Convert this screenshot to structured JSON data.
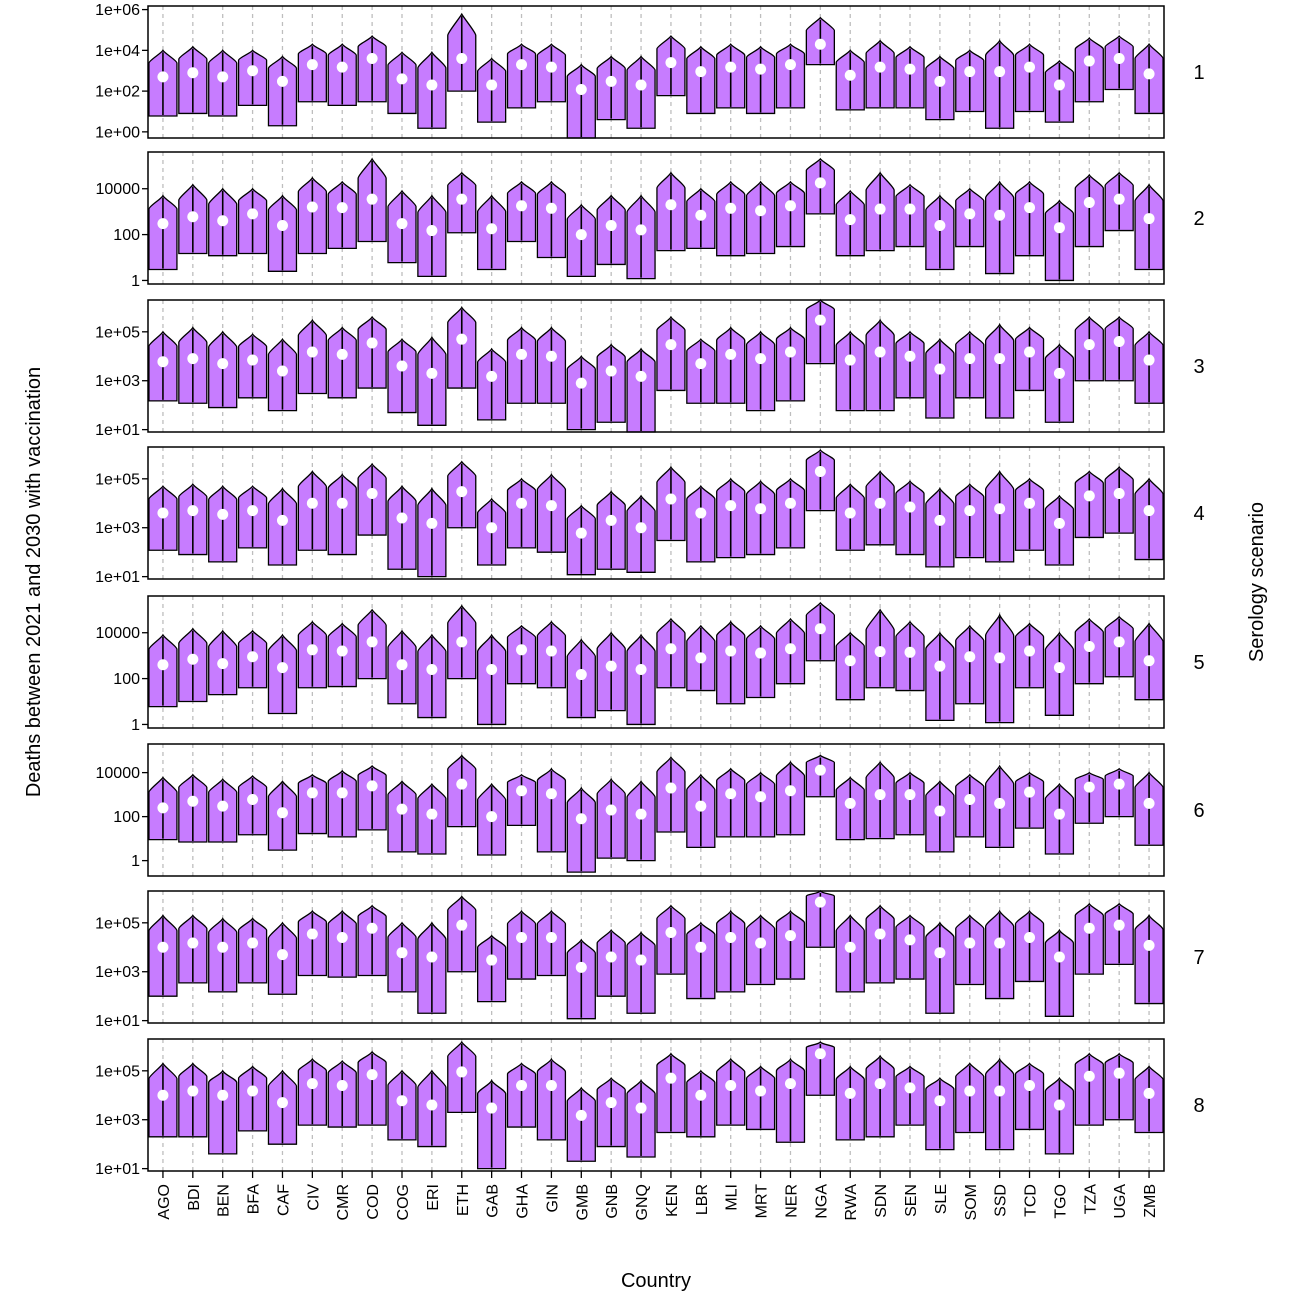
{
  "chart_data": {
    "type": "violin",
    "xlabel": "Country",
    "ylabel": "Deaths between 2021 and 2030 with vaccination",
    "facet_label": "Serology scenario",
    "y_scale": "log10",
    "grid": "vertical dashed at categories",
    "colors": {
      "violin_fill": "#C77CFF",
      "median_point": "#FFFFFF",
      "outline": "#000000",
      "grid": "#BEBEBE"
    },
    "categories": [
      "AGO",
      "BDI",
      "BEN",
      "BFA",
      "CAF",
      "CIV",
      "CMR",
      "COD",
      "COG",
      "ERI",
      "ETH",
      "GAB",
      "GHA",
      "GIN",
      "GMB",
      "GNB",
      "GNQ",
      "KEN",
      "LBR",
      "MLI",
      "MRT",
      "NER",
      "NGA",
      "RWA",
      "SDN",
      "SEN",
      "SLE",
      "SOM",
      "SSD",
      "TCD",
      "TGO",
      "TZA",
      "UGA",
      "ZMB"
    ],
    "panels": [
      {
        "scenario": "1",
        "ylim": [
          0.5,
          1500000
        ],
        "y_ticks": [
          1,
          100,
          10000,
          1000000
        ],
        "y_tick_labels": [
          "1e+00",
          "1e+02",
          "1e+04",
          "1e+06"
        ],
        "median": [
          500,
          800,
          500,
          1000,
          300,
          2000,
          1500,
          4000,
          400,
          200,
          4000,
          200,
          2000,
          1500,
          120,
          300,
          200,
          2500,
          900,
          1500,
          1200,
          2000,
          20000,
          600,
          1500,
          1200,
          300,
          900,
          900,
          1500,
          200,
          3000,
          4000,
          700
        ],
        "low": [
          6,
          8,
          6,
          20,
          2,
          30,
          20,
          30,
          8,
          1.5,
          100,
          3,
          15,
          30,
          0.5,
          4,
          1.5,
          60,
          8,
          15,
          8,
          15,
          2000,
          12,
          15,
          15,
          4,
          10,
          1.5,
          10,
          3,
          30,
          120,
          8
        ],
        "high": [
          10000,
          15000,
          10000,
          10000,
          5000,
          20000,
          20000,
          50000,
          8000,
          8000,
          600000,
          4000,
          20000,
          20000,
          2000,
          5000,
          5000,
          50000,
          15000,
          20000,
          15000,
          20000,
          400000,
          10000,
          30000,
          15000,
          5000,
          10000,
          30000,
          20000,
          3000,
          40000,
          50000,
          20000
        ]
      },
      {
        "scenario": "2",
        "ylim": [
          0.7,
          400000
        ],
        "y_ticks": [
          1,
          100,
          10000
        ],
        "y_tick_labels": [
          "1",
          "100",
          "10000"
        ],
        "median": [
          300,
          600,
          400,
          800,
          250,
          1600,
          1500,
          3500,
          300,
          150,
          3500,
          180,
          1800,
          1400,
          100,
          250,
          160,
          2000,
          700,
          1400,
          1100,
          1800,
          18000,
          450,
          1300,
          1300,
          250,
          800,
          700,
          1500,
          200,
          2500,
          3500,
          500
        ],
        "low": [
          3,
          15,
          12,
          15,
          2.5,
          15,
          25,
          50,
          6,
          1.5,
          120,
          3,
          50,
          10,
          1.5,
          5,
          1.2,
          20,
          25,
          12,
          15,
          30,
          800,
          12,
          20,
          30,
          3,
          30,
          2,
          12,
          1,
          30,
          150,
          3
        ],
        "high": [
          5000,
          15000,
          10000,
          10000,
          5000,
          30000,
          20000,
          200000,
          8000,
          5000,
          50000,
          5000,
          20000,
          20000,
          2000,
          5000,
          5000,
          50000,
          10000,
          20000,
          20000,
          20000,
          200000,
          8000,
          50000,
          15000,
          5000,
          10000,
          20000,
          20000,
          3000,
          40000,
          50000,
          15000
        ]
      },
      {
        "scenario": "3",
        "ylim": [
          8,
          2000000
        ],
        "y_ticks": [
          10,
          1000,
          100000
        ],
        "y_tick_labels": [
          "1e+01",
          "1e+03",
          "1e+05"
        ],
        "median": [
          6000,
          8000,
          5000,
          7000,
          2500,
          15000,
          12000,
          35000,
          4000,
          2000,
          50000,
          1500,
          12000,
          10000,
          800,
          2500,
          1500,
          30000,
          5000,
          12000,
          8000,
          15000,
          300000,
          7000,
          15000,
          10000,
          3000,
          8000,
          8000,
          15000,
          2000,
          30000,
          40000,
          7000
        ],
        "low": [
          150,
          120,
          80,
          200,
          60,
          300,
          200,
          500,
          50,
          15,
          500,
          25,
          120,
          120,
          10,
          20,
          8,
          400,
          120,
          120,
          60,
          150,
          5000,
          60,
          60,
          200,
          30,
          200,
          30,
          400,
          20,
          1000,
          1000,
          120
        ],
        "high": [
          100000,
          150000,
          100000,
          80000,
          50000,
          300000,
          150000,
          400000,
          50000,
          60000,
          1000000,
          20000,
          150000,
          150000,
          10000,
          30000,
          20000,
          400000,
          50000,
          150000,
          100000,
          150000,
          2000000,
          100000,
          300000,
          100000,
          50000,
          100000,
          200000,
          150000,
          30000,
          400000,
          400000,
          100000
        ]
      },
      {
        "scenario": "4",
        "ylim": [
          8,
          2000000
        ],
        "y_ticks": [
          10,
          1000,
          100000
        ],
        "y_tick_labels": [
          "1e+01",
          "1e+03",
          "1e+05"
        ],
        "median": [
          4000,
          5000,
          3500,
          5000,
          2000,
          10000,
          10000,
          25000,
          2500,
          1500,
          30000,
          1000,
          10000,
          8000,
          600,
          2000,
          1000,
          15000,
          4000,
          8000,
          6000,
          10000,
          200000,
          4000,
          10000,
          7000,
          2000,
          5000,
          6000,
          10000,
          1500,
          20000,
          25000,
          5000
        ],
        "low": [
          120,
          80,
          40,
          150,
          30,
          120,
          80,
          500,
          20,
          10,
          1000,
          30,
          150,
          100,
          12,
          20,
          15,
          300,
          40,
          60,
          80,
          150,
          5000,
          120,
          200,
          80,
          25,
          60,
          40,
          120,
          30,
          400,
          600,
          50
        ],
        "high": [
          50000,
          60000,
          50000,
          50000,
          40000,
          200000,
          150000,
          400000,
          50000,
          40000,
          500000,
          15000,
          100000,
          150000,
          8000,
          30000,
          20000,
          300000,
          50000,
          100000,
          80000,
          100000,
          1500000,
          60000,
          200000,
          80000,
          40000,
          60000,
          200000,
          100000,
          20000,
          200000,
          300000,
          100000
        ]
      },
      {
        "scenario": "5",
        "ylim": [
          0.7,
          400000
        ],
        "y_ticks": [
          1,
          100,
          10000
        ],
        "y_tick_labels": [
          "1",
          "100",
          "10000"
        ],
        "median": [
          400,
          700,
          450,
          900,
          300,
          1800,
          1600,
          4000,
          400,
          250,
          4000,
          250,
          1800,
          1600,
          150,
          350,
          250,
          2000,
          800,
          1600,
          1300,
          2000,
          15000,
          600,
          1500,
          1400,
          350,
          900,
          800,
          1600,
          300,
          2500,
          4000,
          600
        ],
        "low": [
          6,
          10,
          20,
          40,
          3,
          40,
          45,
          100,
          8,
          2,
          100,
          1,
          60,
          40,
          2,
          4,
          1,
          40,
          30,
          8,
          15,
          60,
          600,
          12,
          40,
          30,
          1.5,
          8,
          1.2,
          40,
          2.5,
          60,
          120,
          12
        ],
        "high": [
          8000,
          15000,
          12000,
          12000,
          8000,
          30000,
          25000,
          100000,
          12000,
          8000,
          150000,
          8000,
          20000,
          30000,
          5000,
          10000,
          8000,
          40000,
          20000,
          30000,
          20000,
          40000,
          200000,
          10000,
          100000,
          30000,
          10000,
          20000,
          60000,
          25000,
          10000,
          40000,
          50000,
          25000
        ]
      },
      {
        "scenario": "6",
        "ylim": [
          0.2,
          200000
        ],
        "y_ticks": [
          1,
          100,
          10000
        ],
        "y_tick_labels": [
          "1",
          "100",
          "10000"
        ],
        "median": [
          250,
          500,
          300,
          600,
          150,
          1200,
          1200,
          2500,
          220,
          130,
          3000,
          100,
          1500,
          1100,
          80,
          200,
          130,
          2000,
          300,
          1100,
          800,
          1500,
          13000,
          400,
          1000,
          1000,
          180,
          600,
          400,
          1300,
          130,
          2200,
          3000,
          400
        ],
        "low": [
          9,
          7,
          7,
          15,
          3,
          17,
          12,
          25,
          2.5,
          2,
          35,
          1.8,
          40,
          2.5,
          0.3,
          1.3,
          1,
          20,
          4,
          12,
          12,
          15,
          800,
          9,
          10,
          15,
          2.5,
          12,
          4,
          30,
          2,
          50,
          100,
          5
        ],
        "high": [
          6000,
          8000,
          5000,
          7000,
          4000,
          8000,
          12000,
          20000,
          4000,
          3000,
          60000,
          3000,
          8000,
          15000,
          2000,
          5000,
          4000,
          50000,
          8000,
          15000,
          10000,
          30000,
          60000,
          6000,
          30000,
          10000,
          4000,
          8000,
          20000,
          10000,
          3000,
          10000,
          15000,
          10000
        ]
      },
      {
        "scenario": "7",
        "ylim": [
          8,
          2000000
        ],
        "y_ticks": [
          10,
          1000,
          100000
        ],
        "y_tick_labels": [
          "1e+01",
          "1e+03",
          "1e+05"
        ],
        "median": [
          10000,
          15000,
          10000,
          15000,
          5000,
          35000,
          25000,
          60000,
          6000,
          4000,
          80000,
          3000,
          25000,
          25000,
          1500,
          4000,
          3000,
          40000,
          10000,
          25000,
          15000,
          30000,
          700000,
          10000,
          35000,
          20000,
          6000,
          15000,
          15000,
          25000,
          4000,
          60000,
          80000,
          12000
        ],
        "low": [
          100,
          350,
          150,
          350,
          120,
          700,
          600,
          700,
          150,
          20,
          1000,
          60,
          500,
          700,
          12,
          100,
          20,
          800,
          80,
          150,
          300,
          500,
          10000,
          150,
          350,
          500,
          20,
          300,
          80,
          400,
          15,
          800,
          2000,
          50
        ],
        "high": [
          200000,
          200000,
          150000,
          150000,
          100000,
          300000,
          300000,
          500000,
          100000,
          100000,
          1200000,
          30000,
          300000,
          300000,
          20000,
          50000,
          40000,
          500000,
          100000,
          300000,
          200000,
          300000,
          2000000,
          200000,
          500000,
          200000,
          100000,
          200000,
          300000,
          300000,
          50000,
          600000,
          600000,
          200000
        ]
      },
      {
        "scenario": "8",
        "ylim": [
          8,
          2000000
        ],
        "y_ticks": [
          10,
          1000,
          100000
        ],
        "y_tick_labels": [
          "1e+01",
          "1e+03",
          "1e+05"
        ],
        "median": [
          10000,
          15000,
          10000,
          15000,
          5000,
          30000,
          25000,
          70000,
          6000,
          4000,
          90000,
          3000,
          25000,
          25000,
          1500,
          5000,
          3000,
          50000,
          10000,
          25000,
          15000,
          30000,
          500000,
          12000,
          30000,
          20000,
          6000,
          15000,
          15000,
          25000,
          4000,
          60000,
          80000,
          12000
        ],
        "low": [
          200,
          200,
          40,
          350,
          100,
          600,
          500,
          600,
          150,
          80,
          2000,
          10,
          500,
          150,
          20,
          80,
          30,
          300,
          200,
          600,
          400,
          120,
          10000,
          150,
          200,
          600,
          60,
          300,
          60,
          400,
          40,
          600,
          1000,
          300
        ],
        "high": [
          200000,
          200000,
          100000,
          150000,
          100000,
          300000,
          250000,
          600000,
          100000,
          100000,
          1500000,
          40000,
          200000,
          300000,
          20000,
          50000,
          40000,
          500000,
          100000,
          300000,
          150000,
          300000,
          1500000,
          150000,
          400000,
          150000,
          50000,
          200000,
          300000,
          200000,
          50000,
          500000,
          500000,
          150000
        ]
      }
    ]
  }
}
